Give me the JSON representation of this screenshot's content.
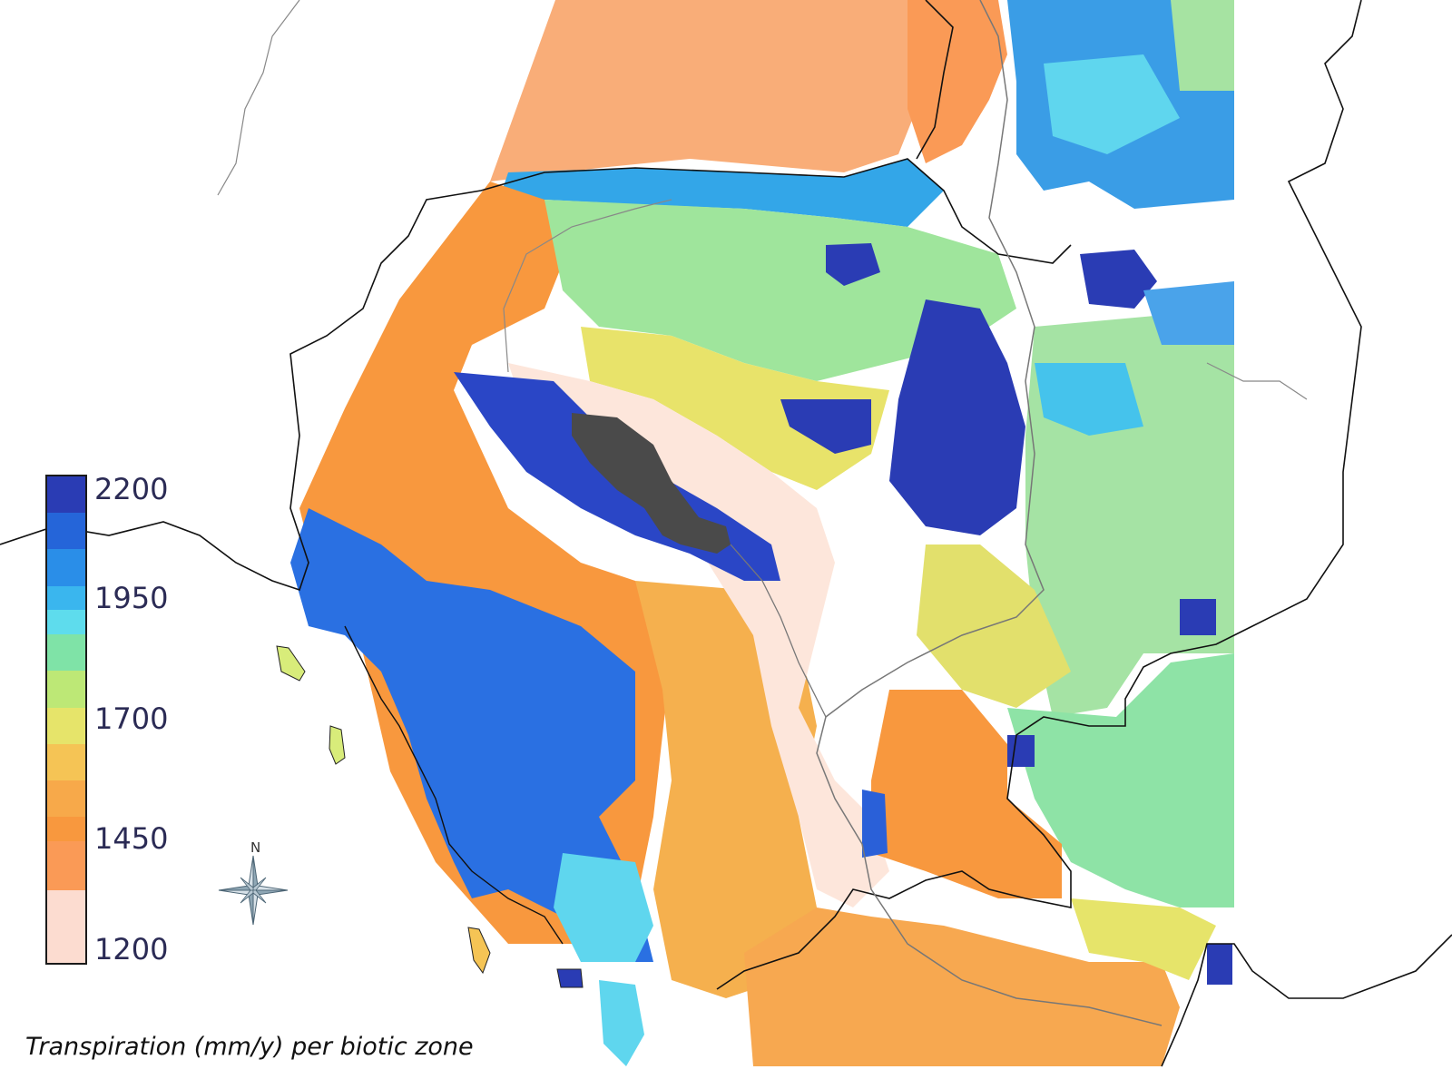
{
  "map": {
    "caption": "Transpiration (mm/y) per biotic zone",
    "compass_label": "N",
    "colors": {
      "lake": "#4a4a4a",
      "border": "#111111",
      "river": "#777777",
      "no_data": "#ffffff"
    }
  },
  "legend": {
    "ticks": [
      "2200",
      "1950",
      "1700",
      "1450",
      "1200"
    ],
    "min": 1200,
    "max": 2200,
    "colors": [
      {
        "value": 2200,
        "color": "#2a3cb4"
      },
      {
        "value": 2125,
        "color": "#2565d9"
      },
      {
        "value": 2050,
        "color": "#2a8ee8"
      },
      {
        "value": 1975,
        "color": "#3ab6ee"
      },
      {
        "value": 1925,
        "color": "#5edced"
      },
      {
        "value": 1875,
        "color": "#7fe3a7"
      },
      {
        "value": 1800,
        "color": "#bde876"
      },
      {
        "value": 1725,
        "color": "#e6e46a"
      },
      {
        "value": 1650,
        "color": "#f5c455"
      },
      {
        "value": 1575,
        "color": "#f7a94a"
      },
      {
        "value": 1500,
        "color": "#f8983e"
      },
      {
        "value": 1450,
        "color": "#fa9a56"
      },
      {
        "value": 1350,
        "color": "#fcdcd0"
      },
      {
        "value": 1200,
        "color": "#fffbf7"
      }
    ]
  }
}
